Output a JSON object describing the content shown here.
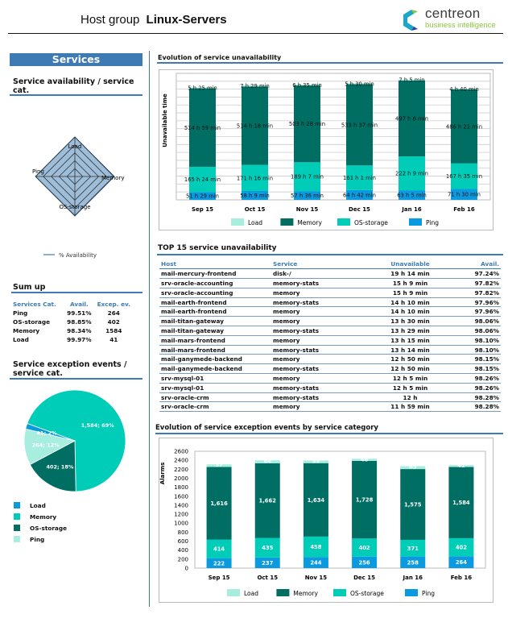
{
  "header": {
    "prefix": "Host group",
    "group": "Linux-Servers",
    "logo_main": "centreon",
    "logo_sub": "business intelligence"
  },
  "colors": {
    "accent": "#3e7bb5",
    "load": "#a8eedf",
    "memory": "#006e63",
    "os_storage": "#00cdb8",
    "ping": "#0a9ae0"
  },
  "left": {
    "banner": "Services",
    "radar_title": "Service availability / service cat.",
    "radar": {
      "axes": [
        "Load",
        "Memory",
        "OS-storage",
        "Ping"
      ],
      "values": [
        99.97,
        98.34,
        98.85,
        99.51
      ],
      "range": [
        0,
        100
      ],
      "legend": "% Availability"
    },
    "sumup_title": "Sum up",
    "sumup": {
      "headers": [
        "Services Cat.",
        "Avail.",
        "Excep. ev."
      ],
      "rows": [
        [
          "Ping",
          "99.51%",
          "264"
        ],
        [
          "OS-storage",
          "98.85%",
          "402"
        ],
        [
          "Memory",
          "98.34%",
          "1584"
        ],
        [
          "Load",
          "99.97%",
          "41"
        ]
      ]
    },
    "pie_title": "Service exception events / service cat.",
    "pie": {
      "type": "pie",
      "slices": [
        {
          "name": "Memory",
          "value": 1584,
          "label": "1,584; 69%",
          "color": "#00cdb8"
        },
        {
          "name": "OS-storage",
          "value": 402,
          "label": "402; 18%",
          "color": "#006e63"
        },
        {
          "name": "Ping",
          "value": 264,
          "label": "264; 12%",
          "color": "#a8eedf"
        },
        {
          "name": "Load",
          "value": 41,
          "label": "41; 2%",
          "color": "#0a9ae0"
        }
      ],
      "legend": [
        {
          "name": "Load",
          "color": "#0a9ae0"
        },
        {
          "name": "Memory",
          "color": "#00cdb8"
        },
        {
          "name": "OS-storage",
          "color": "#006e63"
        },
        {
          "name": "Ping",
          "color": "#a8eedf"
        }
      ]
    }
  },
  "chart_data": [
    {
      "type": "bar",
      "stacked": true,
      "title": "Evolution of service unavailability",
      "ylabel": "Unavailable time",
      "ylim": [
        0,
        830
      ],
      "grid": true,
      "legend": "bottom",
      "categories": [
        "Sep 15",
        "Oct 15",
        "Nov 15",
        "Dec 15",
        "Jan 16",
        "Feb 16"
      ],
      "series": [
        {
          "name": "Ping",
          "color": "#0a9ae0",
          "values": [
            51.48,
            58.15,
            57.6,
            64.7,
            63.08,
            71.5
          ],
          "labels": [
            "51 h 29 min",
            "58 h 9 min",
            "57 h 36 min",
            "64 h 42 min",
            "63 h 5 min",
            "71 h 30 min"
          ]
        },
        {
          "name": "OS-storage",
          "color": "#00cdb8",
          "values": [
            165.4,
            171.27,
            189.12,
            161.02,
            222.15,
            167.58
          ],
          "labels": [
            "165 h 24 min",
            "171 h 16 min",
            "189 h 7 min",
            "161 h 1 min",
            "222 h 9 min",
            "167 h 35 min"
          ]
        },
        {
          "name": "Memory",
          "color": "#006e63",
          "values": [
            514.98,
            514.3,
            503.47,
            533.62,
            497.1,
            486.35
          ],
          "labels": [
            "514 h 59 min",
            "514 h 18 min",
            "503 h 28 min",
            "533 h 37 min",
            "497 h 6 min",
            "486 h 21 min"
          ]
        },
        {
          "name": "Load",
          "color": "#a8eedf",
          "values": [
            5.42,
            7.48,
            6.58,
            5.5,
            7.08,
            4.67
          ],
          "labels": [
            "5 h 25 min",
            "7 h 29 min",
            "6 h 35 min",
            "5 h 30 min",
            "7 h 5 min",
            "4 h 40 min"
          ]
        }
      ],
      "legend_order": [
        "Load",
        "Memory",
        "OS-storage",
        "Ping"
      ]
    },
    {
      "type": "bar",
      "stacked": true,
      "title": "Evolution of service exception events by service category",
      "ylabel": "Alarms",
      "ylim": [
        0,
        2600
      ],
      "yticks": [
        "0",
        "200",
        "400",
        "600",
        "800",
        "1000",
        "1200",
        "1400",
        "1600",
        "1800",
        "2000",
        "2200",
        "2400",
        "2600"
      ],
      "grid": false,
      "legend": "bottom",
      "categories": [
        "Sep 15",
        "Oct 15",
        "Nov 15",
        "Dec 15",
        "Jan 16",
        "Feb 16"
      ],
      "series": [
        {
          "name": "Ping",
          "color": "#0a9ae0",
          "values": [
            222,
            237,
            244,
            256,
            258,
            264
          ],
          "labels": [
            "222",
            "237",
            "244",
            "256",
            "258",
            "264"
          ]
        },
        {
          "name": "OS-storage",
          "color": "#00cdb8",
          "values": [
            414,
            435,
            458,
            402,
            371,
            402
          ],
          "labels": [
            "414",
            "435",
            "458",
            "402",
            "371",
            "402"
          ]
        },
        {
          "name": "Memory",
          "color": "#006e63",
          "values": [
            1616,
            1662,
            1634,
            1728,
            1575,
            1584
          ],
          "labels": [
            "1,616",
            "1,662",
            "1,634",
            "1,728",
            "1,575",
            "1,584"
          ]
        },
        {
          "name": "Load",
          "color": "#a8eedf",
          "values": [
            57,
            64,
            59,
            48,
            65,
            41
          ],
          "labels": [
            "57",
            "64",
            "59",
            "48",
            "65",
            "41"
          ]
        }
      ],
      "legend_order": [
        "Load",
        "Memory",
        "OS-storage",
        "Ping"
      ]
    }
  ],
  "top15": {
    "title": "TOP 15 service unavailability",
    "headers": [
      "Host",
      "Service",
      "Unavailable",
      "Avail."
    ],
    "rows": [
      [
        "mail-mercury-frontend",
        "disk-/",
        "19 h 14 min",
        "97.24%"
      ],
      [
        "srv-oracle-accounting",
        "memory-stats",
        "15 h 9 min",
        "97.82%"
      ],
      [
        "srv-oracle-accounting",
        "memory",
        "15 h 9 min",
        "97.82%"
      ],
      [
        "mail-earth-frontend",
        "memory-stats",
        "14 h 10 min",
        "97.96%"
      ],
      [
        "mail-earth-frontend",
        "memory",
        "14 h 10 min",
        "97.96%"
      ],
      [
        "mail-titan-gateway",
        "memory",
        "13 h 30 min",
        "98.06%"
      ],
      [
        "mail-titan-gateway",
        "memory-stats",
        "13 h 29 min",
        "98.06%"
      ],
      [
        "mail-mars-frontend",
        "memory",
        "13 h 15 min",
        "98.10%"
      ],
      [
        "mail-mars-frontend",
        "memory-stats",
        "13 h 14 min",
        "98.10%"
      ],
      [
        "mail-ganymede-backend",
        "memory",
        "12 h 50 min",
        "98.15%"
      ],
      [
        "mail-ganymede-backend",
        "memory-stats",
        "12 h 50 min",
        "98.15%"
      ],
      [
        "srv-mysql-01",
        "memory",
        "12 h 5 min",
        "98.26%"
      ],
      [
        "srv-mysql-01",
        "memory-stats",
        "12 h 5 min",
        "98.26%"
      ],
      [
        "srv-oracle-crm",
        "memory-stats",
        "12 h",
        "98.28%"
      ],
      [
        "srv-oracle-crm",
        "memory",
        "11 h 59 min",
        "98.28%"
      ]
    ]
  }
}
